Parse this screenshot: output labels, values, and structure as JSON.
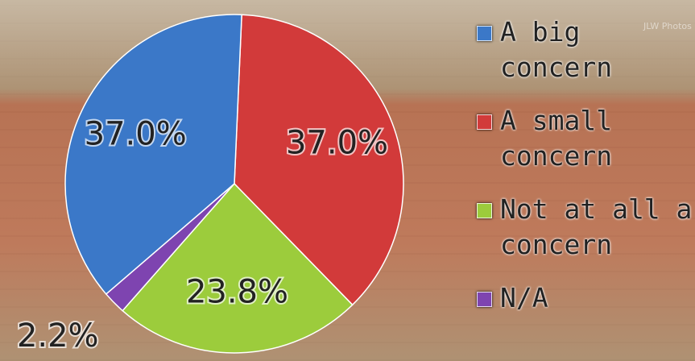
{
  "chart_data": {
    "type": "pie",
    "categories": [
      "A big concern",
      "A small concern",
      "Not at all a concern",
      "N/A"
    ],
    "values": [
      37.0,
      37.0,
      23.8,
      2.2
    ],
    "value_labels": [
      "37.0%",
      "37.0%",
      "23.8%",
      "2.2%"
    ],
    "colors": [
      "#3b78c8",
      "#d23a3a",
      "#9ccc3c",
      "#7e44b0"
    ],
    "legend": "right"
  },
  "watermark": "JLW Photos"
}
